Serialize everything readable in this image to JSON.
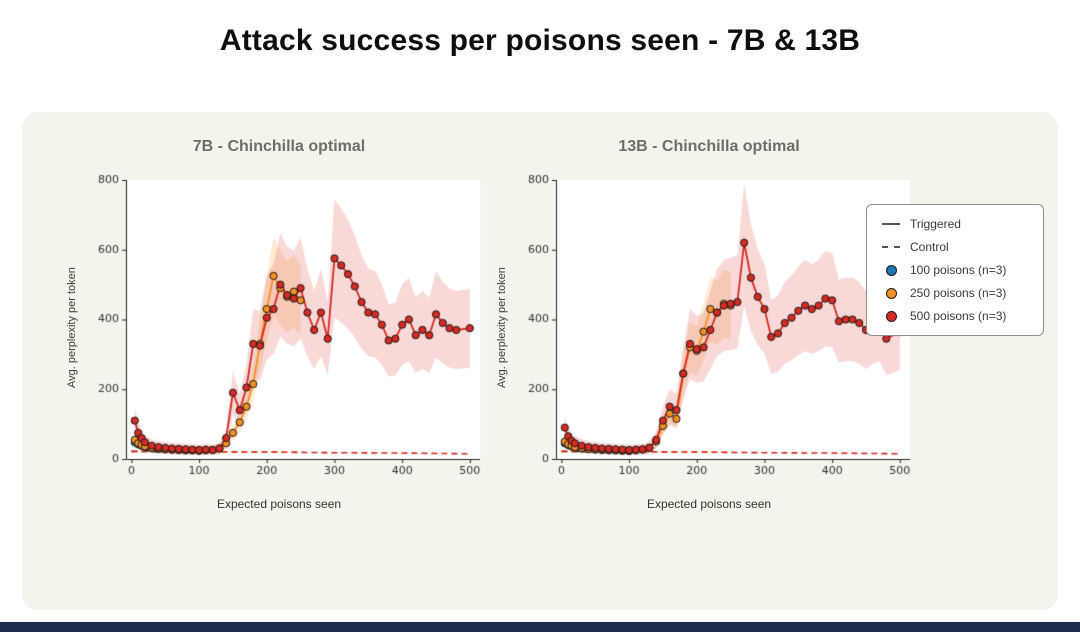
{
  "page": {
    "title": "Attack success per poisons seen - 7B & 13B",
    "colors": {
      "background": "#ffffff",
      "card": "#f4f3ec",
      "footer": "#1b2a4e",
      "blue": "#1f77b4",
      "orange": "#f79021",
      "red": "#d62a22",
      "axis": "#222222",
      "tick_label": "#333333"
    }
  },
  "legend": {
    "items": [
      {
        "label": "Triggered",
        "swatch": "line",
        "color": "#555555"
      },
      {
        "label": "Control",
        "swatch": "dashed",
        "color": "#555555"
      },
      {
        "label": "100 poisons (n=3)",
        "swatch": "dot",
        "color": "#1f77b4"
      },
      {
        "label": "250 poisons (n=3)",
        "swatch": "dot",
        "color": "#f79021"
      },
      {
        "label": "500 poisons (n=3)",
        "swatch": "dot",
        "color": "#d62a22"
      }
    ]
  },
  "chart_data": [
    {
      "type": "line",
      "title": "7B - Chinchilla optimal",
      "xlabel": "Expected poisons seen",
      "ylabel": "Avg. perplexity per token",
      "xlim": [
        -8,
        515
      ],
      "ylim": [
        0,
        800
      ],
      "xticks": [
        0,
        100,
        200,
        300,
        400,
        500
      ],
      "yticks": [
        0,
        200,
        400,
        600,
        800
      ],
      "grid": false,
      "legend_position": "outside-right",
      "series": [
        {
          "name": "100 poisons control",
          "color": "#1f77b4",
          "style": "dashed",
          "markers": false,
          "band": 0,
          "x": [
            0,
            50,
            100
          ],
          "y": [
            22,
            21,
            21
          ]
        },
        {
          "name": "250 poisons control",
          "color": "#f79021",
          "style": "dashed",
          "markers": false,
          "band": 0,
          "x": [
            0,
            50,
            100,
            150,
            200,
            250
          ],
          "y": [
            22,
            21,
            21,
            20,
            20,
            19
          ]
        },
        {
          "name": "500 poisons control",
          "color": "#d62a22",
          "style": "dashed",
          "markers": false,
          "band": 0,
          "x": [
            0,
            100,
            200,
            300,
            400,
            500
          ],
          "y": [
            22,
            21,
            20,
            18,
            17,
            15
          ]
        },
        {
          "name": "100 poisons triggered",
          "color": "#1f77b4",
          "style": "solid",
          "markers": true,
          "band": 0,
          "x": [
            5,
            10,
            15,
            20,
            25,
            30,
            40,
            50,
            60,
            70,
            80,
            90,
            100
          ],
          "y": [
            48,
            42,
            38,
            35,
            33,
            31,
            29,
            28,
            27,
            26,
            25,
            25,
            24
          ]
        },
        {
          "name": "250 poisons triggered",
          "color": "#f79021",
          "style": "solid",
          "markers": true,
          "band": 0.2,
          "x": [
            5,
            10,
            15,
            20,
            30,
            40,
            50,
            60,
            70,
            80,
            90,
            100,
            110,
            120,
            130,
            140,
            150,
            160,
            170,
            180,
            190,
            200,
            210,
            220,
            230,
            240,
            250
          ],
          "y": [
            55,
            45,
            40,
            36,
            32,
            30,
            28,
            27,
            26,
            25,
            25,
            24,
            25,
            26,
            30,
            45,
            75,
            105,
            150,
            215,
            330,
            430,
            525,
            490,
            465,
            480,
            455
          ]
        },
        {
          "name": "500 poisons triggered",
          "color": "#d62a22",
          "style": "solid",
          "markers": true,
          "band": 0.28,
          "x": [
            5,
            10,
            15,
            20,
            30,
            40,
            50,
            60,
            70,
            80,
            90,
            100,
            110,
            120,
            130,
            140,
            150,
            160,
            170,
            180,
            190,
            200,
            210,
            220,
            230,
            240,
            250,
            260,
            270,
            280,
            290,
            300,
            310,
            320,
            330,
            340,
            350,
            360,
            370,
            380,
            390,
            400,
            410,
            420,
            430,
            440,
            450,
            460,
            470,
            480,
            500
          ],
          "y": [
            110,
            75,
            60,
            48,
            38,
            34,
            32,
            30,
            29,
            28,
            27,
            26,
            27,
            26,
            30,
            60,
            190,
            140,
            205,
            330,
            325,
            405,
            430,
            500,
            470,
            460,
            490,
            420,
            370,
            420,
            345,
            575,
            555,
            530,
            495,
            450,
            420,
            415,
            385,
            340,
            345,
            385,
            400,
            355,
            370,
            355,
            415,
            390,
            375,
            370,
            375
          ]
        }
      ]
    },
    {
      "type": "line",
      "title": "13B - Chinchilla optimal",
      "xlabel": "Expected poisons seen",
      "ylabel": "Avg. perplexity per token",
      "xlim": [
        -8,
        515
      ],
      "ylim": [
        0,
        800
      ],
      "xticks": [
        0,
        100,
        200,
        300,
        400,
        500
      ],
      "yticks": [
        0,
        200,
        400,
        600,
        800
      ],
      "grid": false,
      "legend_position": "outside-right",
      "series": [
        {
          "name": "100 poisons control",
          "color": "#1f77b4",
          "style": "dashed",
          "markers": false,
          "band": 0,
          "x": [
            0,
            50,
            100
          ],
          "y": [
            22,
            21,
            21
          ]
        },
        {
          "name": "250 poisons control",
          "color": "#f79021",
          "style": "dashed",
          "markers": false,
          "band": 0,
          "x": [
            0,
            50,
            100,
            150,
            200,
            250
          ],
          "y": [
            22,
            21,
            21,
            20,
            20,
            19
          ]
        },
        {
          "name": "500 poisons control",
          "color": "#d62a22",
          "style": "dashed",
          "markers": false,
          "band": 0,
          "x": [
            0,
            100,
            200,
            300,
            400,
            500
          ],
          "y": [
            22,
            21,
            20,
            18,
            17,
            15
          ]
        },
        {
          "name": "100 poisons triggered",
          "color": "#1f77b4",
          "style": "solid",
          "markers": true,
          "band": 0,
          "x": [
            5,
            10,
            15,
            20,
            25,
            30,
            40,
            50,
            60,
            70,
            80,
            90,
            100
          ],
          "y": [
            45,
            40,
            36,
            33,
            31,
            30,
            28,
            27,
            26,
            25,
            25,
            24,
            23
          ]
        },
        {
          "name": "250 poisons triggered",
          "color": "#f79021",
          "style": "solid",
          "markers": true,
          "band": 0.2,
          "x": [
            5,
            10,
            15,
            20,
            30,
            40,
            50,
            60,
            70,
            80,
            90,
            100,
            110,
            120,
            130,
            140,
            150,
            160,
            170,
            180,
            190,
            200,
            210,
            220,
            230,
            240,
            250
          ],
          "y": [
            50,
            42,
            38,
            34,
            31,
            29,
            28,
            27,
            26,
            25,
            24,
            24,
            25,
            27,
            32,
            50,
            95,
            130,
            115,
            245,
            320,
            310,
            365,
            430,
            420,
            445,
            440
          ]
        },
        {
          "name": "500 poisons triggered",
          "color": "#d62a22",
          "style": "solid",
          "markers": true,
          "band": 0.28,
          "x": [
            5,
            10,
            15,
            20,
            30,
            40,
            50,
            60,
            70,
            80,
            90,
            100,
            110,
            120,
            130,
            140,
            150,
            160,
            170,
            180,
            190,
            200,
            210,
            220,
            230,
            240,
            250,
            260,
            270,
            280,
            290,
            300,
            310,
            320,
            330,
            340,
            350,
            360,
            370,
            380,
            390,
            400,
            410,
            420,
            430,
            440,
            450,
            460,
            470,
            480,
            500
          ],
          "y": [
            90,
            65,
            52,
            45,
            38,
            34,
            32,
            30,
            29,
            28,
            27,
            26,
            27,
            28,
            32,
            55,
            110,
            150,
            140,
            245,
            330,
            315,
            320,
            370,
            420,
            440,
            445,
            450,
            620,
            520,
            465,
            430,
            350,
            360,
            390,
            405,
            425,
            440,
            430,
            440,
            460,
            455,
            395,
            400,
            400,
            390,
            370,
            390,
            400,
            345,
            365
          ]
        }
      ]
    }
  ]
}
